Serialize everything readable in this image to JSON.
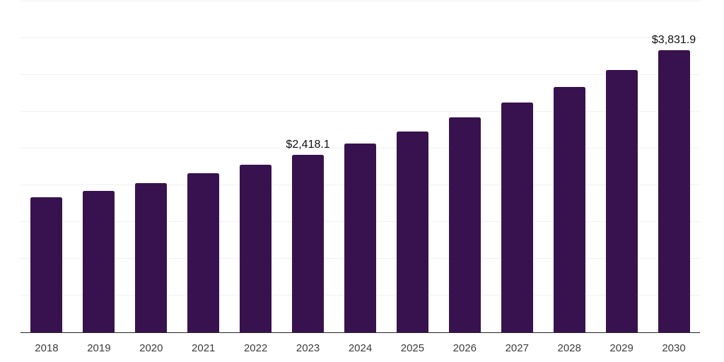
{
  "chart_data": {
    "type": "bar",
    "title": "",
    "xlabel": "",
    "ylabel": "",
    "categories": [
      "2018",
      "2019",
      "2020",
      "2021",
      "2022",
      "2023",
      "2024",
      "2025",
      "2026",
      "2027",
      "2028",
      "2029",
      "2030"
    ],
    "values": [
      1834,
      1926,
      2025,
      2160,
      2281,
      2418.1,
      2572,
      2735,
      2920,
      3124,
      3339,
      3569,
      3831.9
    ],
    "point_labels": [
      "",
      "",
      "",
      "",
      "",
      "$2,418.1",
      "",
      "",
      "",
      "",
      "",
      "",
      "$3,831.9"
    ],
    "ylim": [
      0,
      4500
    ],
    "gridline_step": 500,
    "grid": true,
    "legend_position": "none",
    "y_tick_labels_visible": false,
    "bar_color": "#38124E",
    "axis_line_color": "#262626",
    "gridline_color": "#f1f1f1",
    "tick_label_color": "#3d3d3d",
    "value_label_color": "#111111",
    "background_color": "#ffffff"
  }
}
